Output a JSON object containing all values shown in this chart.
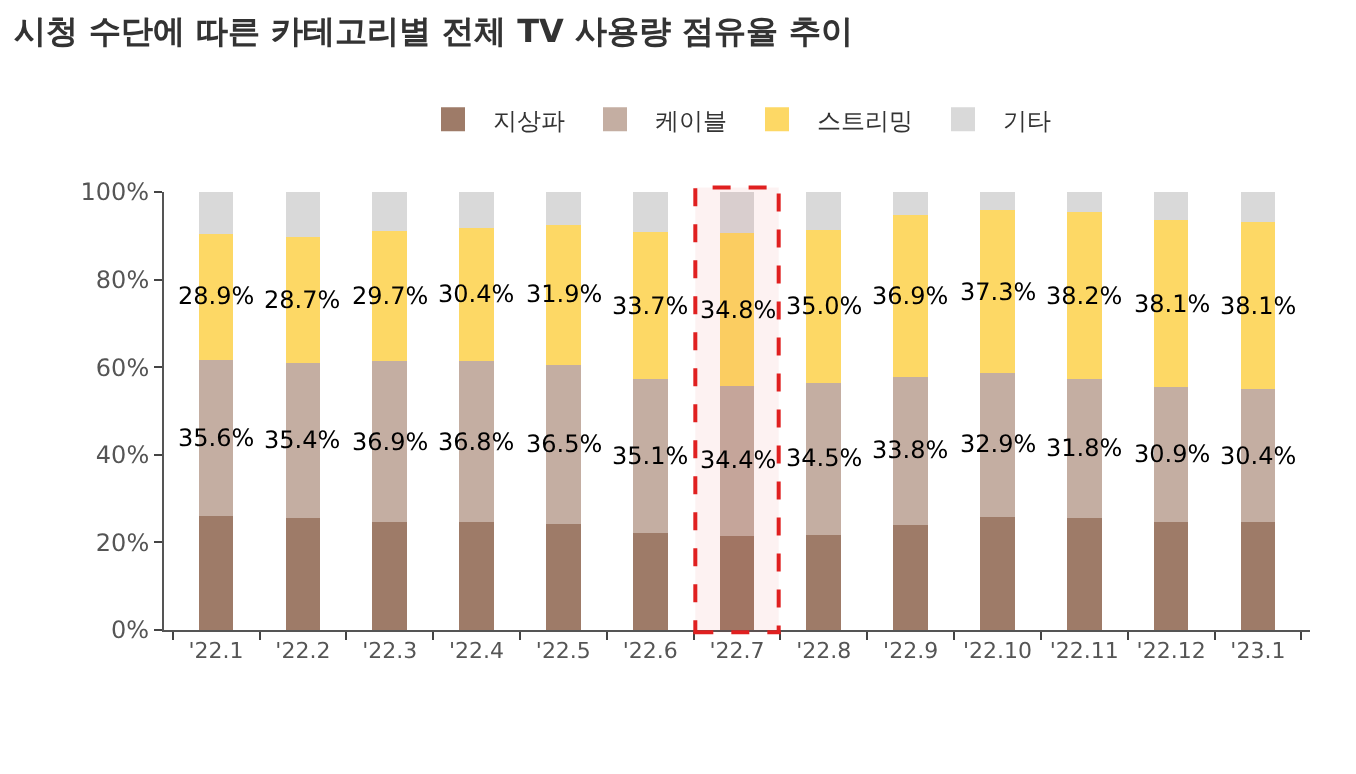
{
  "chart_data": {
    "type": "bar",
    "title": "시청 수단에 따른 카테고리별 전체 TV 사용량 점유율 추이",
    "stacked": true,
    "categories": [
      "'22.1",
      "'22.2",
      "'22.3",
      "'22.4",
      "'22.5",
      "'22.6",
      "'22.7",
      "'22.8",
      "'22.9",
      "'22.10",
      "'22.11",
      "'22.12",
      "'23.1"
    ],
    "series": [
      {
        "name": "지상파",
        "color": "#9e7b68",
        "values": [
          26.0,
          25.6,
          24.6,
          24.6,
          24.1,
          22.1,
          21.4,
          21.8,
          24.0,
          25.8,
          25.5,
          24.6,
          24.6
        ]
      },
      {
        "name": "케이블",
        "color": "#c4aea2",
        "values": [
          35.6,
          35.4,
          36.9,
          36.8,
          36.5,
          35.1,
          34.4,
          34.5,
          33.8,
          32.9,
          31.8,
          30.9,
          30.4
        ],
        "value_labels": [
          "35.6%",
          "35.4%",
          "36.9%",
          "36.8%",
          "36.5%",
          "35.1%",
          "34.4%",
          "34.5%",
          "33.8%",
          "32.9%",
          "31.8%",
          "30.9%",
          "30.4%"
        ]
      },
      {
        "name": "스트리밍",
        "color": "#fdd865",
        "values": [
          28.9,
          28.7,
          29.7,
          30.4,
          31.9,
          33.7,
          34.8,
          35.0,
          36.9,
          37.3,
          38.2,
          38.1,
          38.1
        ],
        "value_labels": [
          "28.9%",
          "28.7%",
          "29.7%",
          "30.4%",
          "31.9%",
          "33.7%",
          "34.8%",
          "35.0%",
          "36.9%",
          "37.3%",
          "38.2%",
          "38.1%",
          "38.1%"
        ]
      },
      {
        "name": "기타",
        "color": "#d9d9d9",
        "values": [
          9.5,
          10.3,
          8.8,
          8.2,
          7.5,
          9.1,
          9.4,
          8.7,
          5.3,
          4.0,
          4.5,
          6.4,
          6.9
        ]
      }
    ],
    "ylim": [
      0,
      100
    ],
    "yticks": [
      {
        "value": 0,
        "label": "0%"
      },
      {
        "value": 20,
        "label": "20%"
      },
      {
        "value": 40,
        "label": "40%"
      },
      {
        "value": 60,
        "label": "60%"
      },
      {
        "value": 80,
        "label": "80%"
      },
      {
        "value": 100,
        "label": "100%"
      }
    ],
    "bands": [
      {
        "axis": "x",
        "from": "'22.7",
        "to": "'22.7",
        "color": "#e02020"
      }
    ],
    "legend": "top"
  }
}
